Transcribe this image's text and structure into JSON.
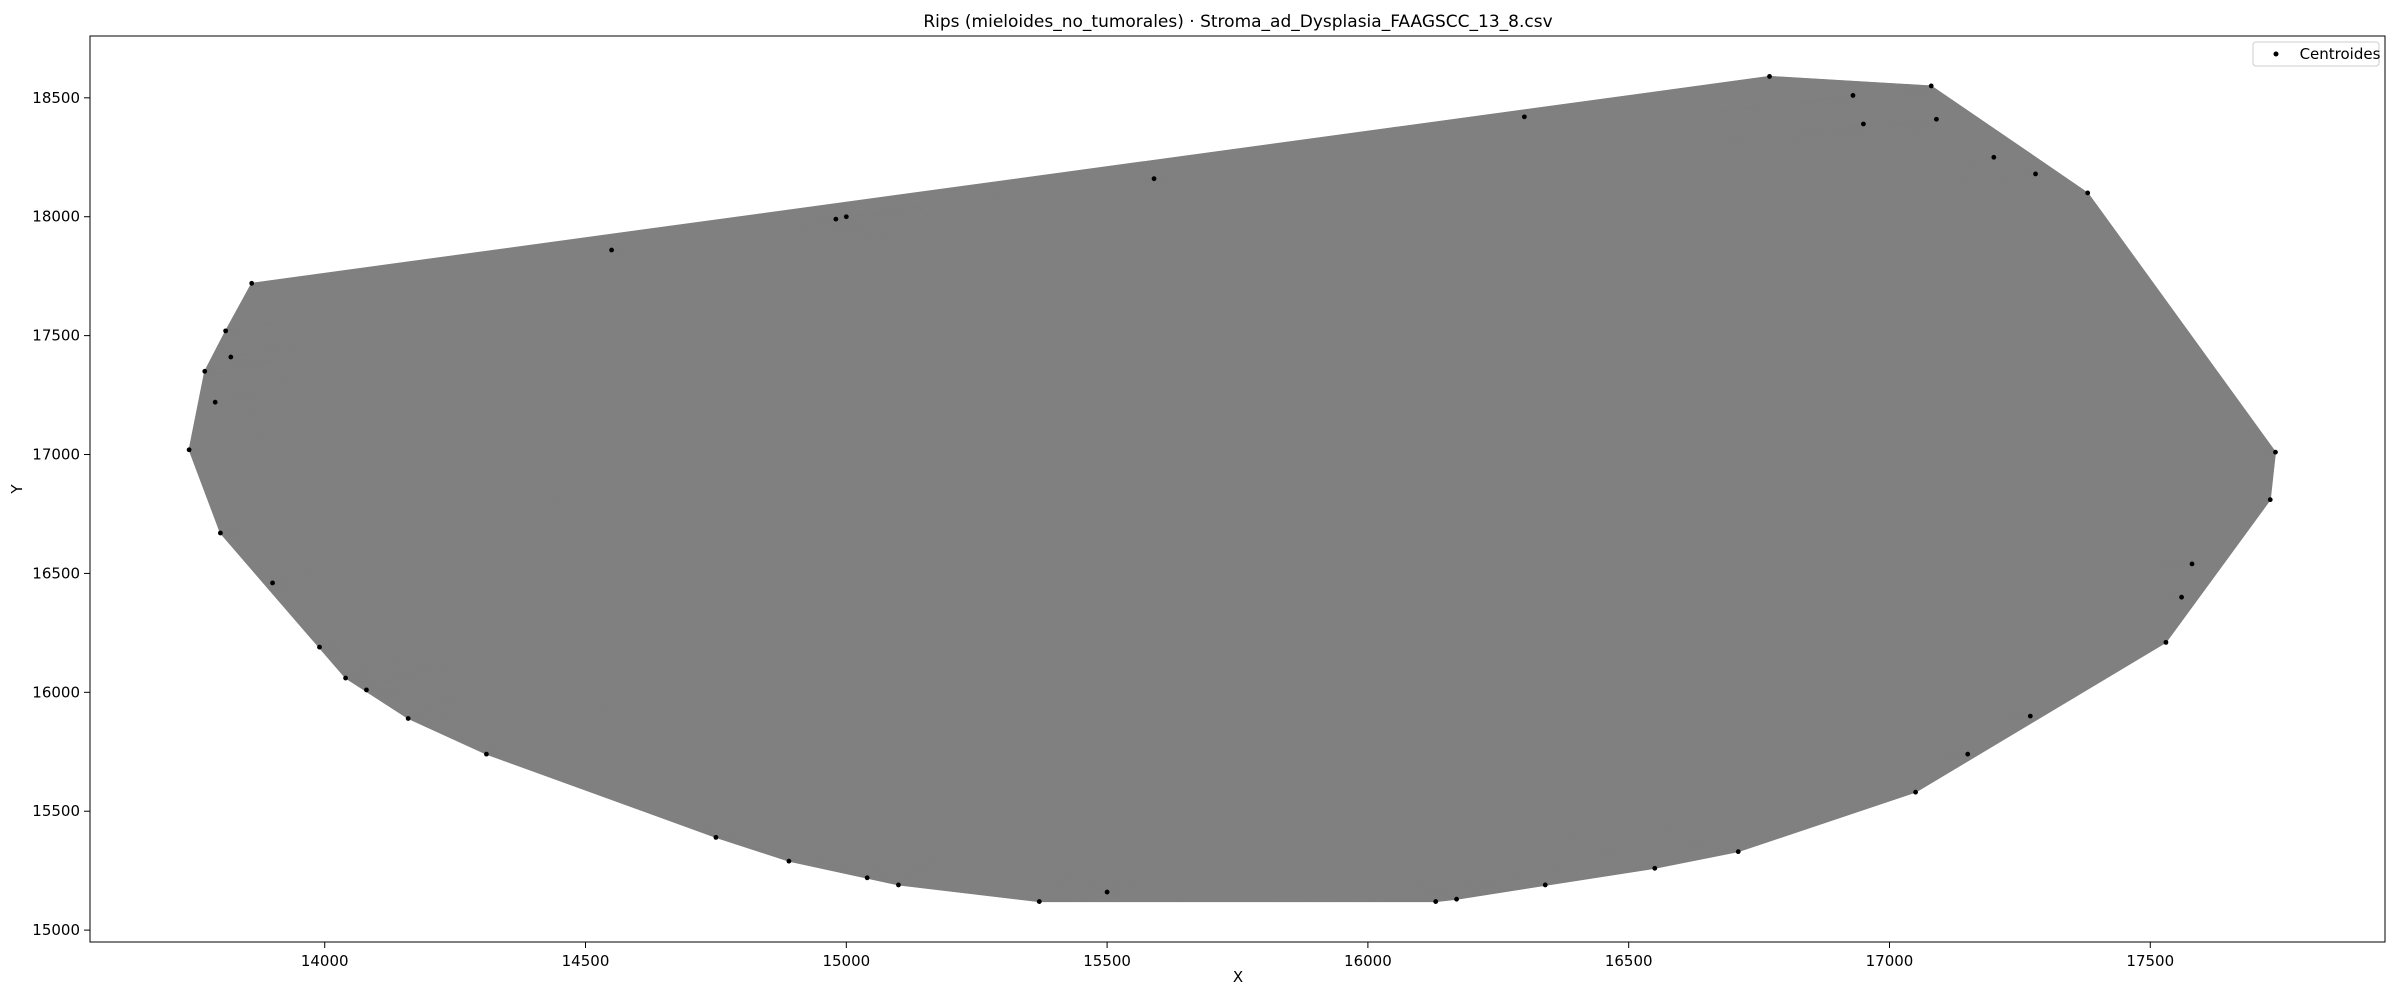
{
  "chart_data": {
    "type": "scatter",
    "title": "Rips (mieloides_no_tumorales) · Stroma_ad_Dysplasia_FAAGSCC_13_8.csv",
    "xlabel": "X",
    "ylabel": "Y",
    "xlim": [
      13550,
      17950
    ],
    "ylim": [
      14950,
      18760
    ],
    "xticks": [
      14000,
      14500,
      15000,
      15500,
      16000,
      16500,
      17000,
      17500
    ],
    "yticks": [
      15000,
      15500,
      16000,
      16500,
      17000,
      17500,
      18000,
      18500
    ],
    "grid": false,
    "legend_position": "top-right",
    "edge_color": "#808080",
    "point_color": "#000000",
    "series": [
      {
        "name": "Centroides",
        "points": [
          [
            13740,
            17020
          ],
          [
            13770,
            17350
          ],
          [
            13790,
            17220
          ],
          [
            13800,
            16670
          ],
          [
            13810,
            17520
          ],
          [
            13860,
            17720
          ],
          [
            13990,
            16190
          ],
          [
            14040,
            16060
          ],
          [
            14080,
            16010
          ],
          [
            14160,
            15890
          ],
          [
            14310,
            15740
          ],
          [
            14550,
            17860
          ],
          [
            14750,
            15390
          ],
          [
            14890,
            15290
          ],
          [
            14980,
            17990
          ],
          [
            15000,
            18000
          ],
          [
            15040,
            15220
          ],
          [
            15100,
            15190
          ],
          [
            15370,
            15120
          ],
          [
            15590,
            18160
          ],
          [
            16130,
            15120
          ],
          [
            16170,
            15130
          ],
          [
            16300,
            18420
          ],
          [
            16340,
            15190
          ],
          [
            16710,
            15330
          ],
          [
            16770,
            18590
          ],
          [
            16930,
            18510
          ],
          [
            17050,
            15580
          ],
          [
            17080,
            18550
          ],
          [
            17150,
            15740
          ],
          [
            17270,
            15900
          ],
          [
            17280,
            18180
          ],
          [
            17380,
            18100
          ],
          [
            17530,
            16210
          ],
          [
            17560,
            16400
          ],
          [
            17580,
            16540
          ],
          [
            17730,
            16810
          ],
          [
            17740,
            17010
          ],
          [
            16950,
            18390
          ],
          [
            17090,
            18410
          ],
          [
            13820,
            17410
          ],
          [
            13900,
            16460
          ],
          [
            17200,
            18250
          ],
          [
            15500,
            15160
          ],
          [
            16550,
            15260
          ]
        ]
      }
    ]
  }
}
